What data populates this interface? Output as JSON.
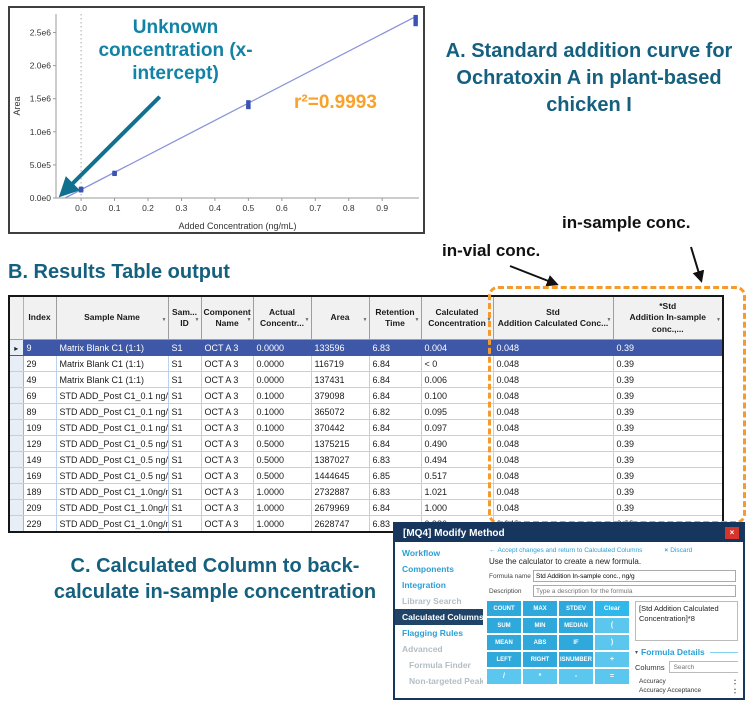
{
  "panel_a": {
    "title": "A. Standard addition curve for Ochratoxin A in plant-based chicken I"
  },
  "chart_data": {
    "type": "scatter",
    "title": "Standard addition curve",
    "xlabel": "Added Concentration (ng/mL)",
    "ylabel": "Area",
    "xlim": [
      -0.075,
      1.01
    ],
    "ylim": [
      0,
      2780000
    ],
    "grid": false,
    "x_ticks": [
      {
        "v": 0.0,
        "label": "0.0"
      },
      {
        "v": 0.1,
        "label": "0.1"
      },
      {
        "v": 0.2,
        "label": "0.2"
      },
      {
        "v": 0.3,
        "label": "0.3"
      },
      {
        "v": 0.4,
        "label": "0.4"
      },
      {
        "v": 0.5,
        "label": "0.5"
      },
      {
        "v": 0.6,
        "label": "0.6"
      },
      {
        "v": 0.7,
        "label": "0.7"
      },
      {
        "v": 0.8,
        "label": "0.8"
      },
      {
        "v": 0.9,
        "label": "0.9"
      }
    ],
    "y_ticks": [
      {
        "v": 0,
        "label": "0.0e0"
      },
      {
        "v": 500000,
        "label": "5.0e5"
      },
      {
        "v": 1000000,
        "label": "1.0e6"
      },
      {
        "v": 1500000,
        "label": "1.5e6"
      },
      {
        "v": 2000000,
        "label": "2.0e6"
      },
      {
        "v": 2500000,
        "label": "2.5e6"
      }
    ],
    "points": [
      [
        0.0,
        133596
      ],
      [
        0.0,
        116719
      ],
      [
        0.0,
        137431
      ],
      [
        0.1,
        379098
      ],
      [
        0.1,
        365072
      ],
      [
        0.1,
        370442
      ],
      [
        0.5,
        1375215
      ],
      [
        0.5,
        1387027
      ],
      [
        0.5,
        1444645
      ],
      [
        1.0,
        2732887
      ],
      [
        1.0,
        2679969
      ],
      [
        1.0,
        2628747
      ]
    ],
    "fit_line": {
      "x1": -0.048,
      "y1": 0,
      "x2": 1.005,
      "y2": 2755000
    },
    "zero_reference_x": 0.0,
    "x_intercept": -0.048,
    "annotations": {
      "unknown": "Unknown concentration (x-intercept)",
      "r_squared": "r²=0.9993"
    },
    "annotation_arrow": {
      "from_x": 0.235,
      "from_y": 1530000,
      "to_x": -0.055,
      "to_y": 70000
    },
    "colors": {
      "line": "#8A94DB",
      "point": "#3A53B4",
      "arrow": "#10708F",
      "annotation": "#1283A6",
      "r_squared": "#F9A22B"
    }
  },
  "callouts": {
    "in_vial": "in-vial conc.",
    "in_sample": "in-sample conc."
  },
  "section_b": {
    "heading": "B. Results Table output"
  },
  "table": {
    "columns": [
      {
        "label": "Index",
        "filter": false
      },
      {
        "label": "Sample Name",
        "filter": true
      },
      {
        "label": "Sam...\nID",
        "filter": true
      },
      {
        "label": "Component\nName",
        "filter": true
      },
      {
        "label": "Actual\nConcentr...",
        "filter": true
      },
      {
        "label": "Area",
        "filter": true
      },
      {
        "label": "Retention\nTime",
        "filter": true
      },
      {
        "label": "Calculated\nConcentration",
        "filter": true
      },
      {
        "label": "Std\nAddition Calculated Conc...",
        "filter": true
      },
      {
        "label": "*Std\nAddition In-sample conc.,...",
        "filter": true
      }
    ],
    "selected_row_index": 0,
    "rows": [
      [
        "9",
        "Matrix Blank C1 (1:1)",
        "S1",
        "OCT A 3",
        "0.0000",
        "133596",
        "6.83",
        "0.004",
        "0.048",
        "0.39"
      ],
      [
        "29",
        "Matrix Blank C1 (1:1)",
        "S1",
        "OCT A 3",
        "0.0000",
        "116719",
        "6.84",
        "< 0",
        "0.048",
        "0.39"
      ],
      [
        "49",
        "Matrix Blank C1 (1:1)",
        "S1",
        "OCT A 3",
        "0.0000",
        "137431",
        "6.84",
        "0.006",
        "0.048",
        "0.39"
      ],
      [
        "69",
        "STD ADD_Post C1_0.1 ng/mL",
        "S1",
        "OCT A 3",
        "0.1000",
        "379098",
        "6.84",
        "0.100",
        "0.048",
        "0.39"
      ],
      [
        "89",
        "STD ADD_Post C1_0.1 ng/mL",
        "S1",
        "OCT A 3",
        "0.1000",
        "365072",
        "6.82",
        "0.095",
        "0.048",
        "0.39"
      ],
      [
        "109",
        "STD ADD_Post C1_0.1 ng/mL",
        "S1",
        "OCT A 3",
        "0.1000",
        "370442",
        "6.84",
        "0.097",
        "0.048",
        "0.39"
      ],
      [
        "129",
        "STD ADD_Post C1_0.5 ng/mL",
        "S1",
        "OCT A 3",
        "0.5000",
        "1375215",
        "6.84",
        "0.490",
        "0.048",
        "0.39"
      ],
      [
        "149",
        "STD ADD_Post C1_0.5 ng/mL",
        "S1",
        "OCT A 3",
        "0.5000",
        "1387027",
        "6.83",
        "0.494",
        "0.048",
        "0.39"
      ],
      [
        "169",
        "STD ADD_Post C1_0.5 ng/mL",
        "S1",
        "OCT A 3",
        "0.5000",
        "1444645",
        "6.85",
        "0.517",
        "0.048",
        "0.39"
      ],
      [
        "189",
        "STD ADD_Post C1_1.0ng/mL",
        "S1",
        "OCT A 3",
        "1.0000",
        "2732887",
        "6.83",
        "1.021",
        "0.048",
        "0.39"
      ],
      [
        "209",
        "STD ADD_Post C1_1.0ng/mL",
        "S1",
        "OCT A 3",
        "1.0000",
        "2679969",
        "6.84",
        "1.000",
        "0.048",
        "0.39"
      ],
      [
        "229",
        "STD ADD_Post C1_1.0ng/mL",
        "S1",
        "OCT A 3",
        "1.0000",
        "2628747",
        "6.83",
        "0.980",
        "0.048",
        "0.39"
      ]
    ]
  },
  "section_c": {
    "heading": "C. Calculated Column to back-calculate in-sample concentration"
  },
  "dialog": {
    "title": "[MQ4] Modify Method",
    "links": {
      "accept": "Accept changes and return to Calculated Columns",
      "discard": "Discard"
    },
    "sidebar": [
      {
        "label": "Workflow",
        "state": "link",
        "indent": false
      },
      {
        "label": "Components",
        "state": "link",
        "indent": false
      },
      {
        "label": "Integration",
        "state": "link",
        "indent": false
      },
      {
        "label": "Library Search",
        "state": "disabled",
        "indent": false
      },
      {
        "label": "Calculated Columns",
        "state": "selected",
        "indent": false
      },
      {
        "label": "Flagging Rules",
        "state": "link",
        "indent": false
      },
      {
        "label": "Advanced",
        "state": "disabled",
        "indent": false
      },
      {
        "label": "Formula Finder",
        "state": "disabled",
        "indent": true
      },
      {
        "label": "Non-targeted Peaks",
        "state": "disabled",
        "indent": true
      }
    ],
    "instruction": "Use the calculator to create a new formula.",
    "formula_name_label": "Formula name",
    "formula_name_value": "Std Addition In-sample conc., ng/g",
    "description_label": "Description",
    "description_placeholder": "Type a description for the formula",
    "calculator": {
      "rows": [
        [
          "COUNT",
          "MAX",
          "STDEV",
          "Clear"
        ],
        [
          "SUM",
          "MIN",
          "MEDIAN",
          "("
        ],
        [
          "MEAN",
          "ABS",
          "IF",
          ")"
        ],
        [
          "LEFT",
          "RIGHT",
          "ISNUMBER",
          "+"
        ],
        [
          "/",
          "*",
          "-",
          "="
        ]
      ]
    },
    "formula_display": "[Std Addition Calculated Concentration]*8",
    "formula_details": {
      "heading": "Formula Details",
      "columns_label": "Columns",
      "search_placeholder": "Search",
      "items": [
        "Accuracy",
        "Accuracy Acceptance"
      ]
    }
  }
}
